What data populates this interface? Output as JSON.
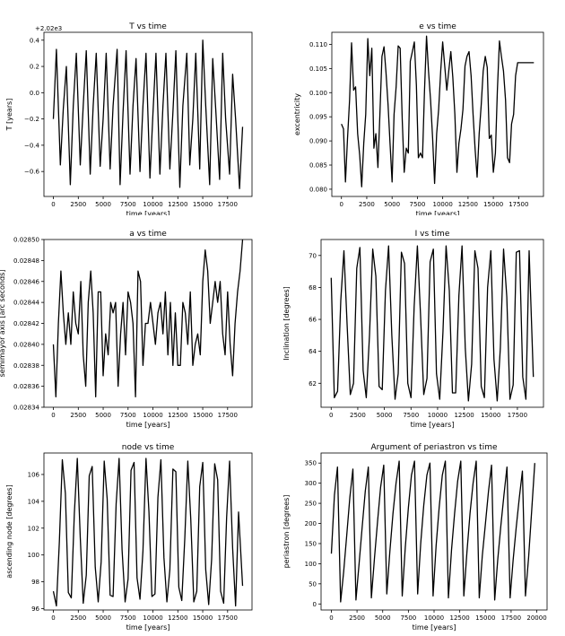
{
  "chart_data": [
    {
      "type": "line",
      "title": "T vs time",
      "xlabel": "time [years]",
      "ylabel": "T [years]",
      "offset_label": "+2.02e3",
      "xlim": [
        -950,
        19950
      ],
      "ylim": [
        -0.79,
        0.46
      ],
      "xticks": [
        0,
        2500,
        5000,
        7500,
        10000,
        12500,
        15000,
        17500
      ],
      "xtick_labels": [
        "0",
        "2500",
        "5000",
        "7500",
        "10000",
        "12500",
        "15000",
        "17500"
      ],
      "yticks": [
        -0.6,
        -0.4,
        -0.2,
        0.0,
        0.2,
        0.4
      ],
      "ytick_labels": [
        "−0.6",
        "−0.4",
        "−0.2",
        "0.0",
        "0.2",
        "0.4"
      ],
      "x": [
        0,
        300,
        700,
        1000,
        1300,
        1700,
        2000,
        2300,
        2700,
        3000,
        3300,
        3700,
        4000,
        4300,
        4700,
        5000,
        5300,
        5700,
        6000,
        6400,
        6700,
        7000,
        7300,
        7700,
        8000,
        8300,
        8700,
        9000,
        9300,
        9700,
        10000,
        10300,
        10700,
        11000,
        11300,
        11700,
        12000,
        12300,
        12700,
        13000,
        13400,
        13700,
        14000,
        14300,
        14700,
        15000,
        15300,
        15700,
        16000,
        16300,
        16700,
        17000,
        17300,
        17700,
        18000,
        18300,
        18700,
        19000
      ],
      "y": [
        -0.2,
        0.33,
        -0.55,
        -0.12,
        0.2,
        -0.7,
        -0.1,
        0.3,
        -0.55,
        -0.1,
        0.32,
        -0.62,
        -0.1,
        0.3,
        -0.56,
        -0.2,
        0.3,
        -0.58,
        -0.1,
        0.33,
        -0.7,
        -0.15,
        0.32,
        -0.62,
        -0.1,
        0.26,
        -0.6,
        -0.1,
        0.3,
        -0.65,
        -0.15,
        0.3,
        -0.62,
        -0.1,
        0.3,
        -0.58,
        -0.15,
        0.32,
        -0.72,
        -0.1,
        0.3,
        -0.55,
        -0.2,
        0.3,
        -0.58,
        0.4,
        -0.1,
        -0.7,
        0.26,
        -0.12,
        -0.66,
        0.3,
        -0.2,
        -0.62,
        0.14,
        -0.2,
        -0.73,
        -0.26
      ]
    },
    {
      "type": "line",
      "title": "e vs time",
      "xlabel": "time [years]",
      "ylabel": "excentricity",
      "xlim": [
        -950,
        19950
      ],
      "ylim": [
        0.0785,
        0.1125
      ],
      "xticks": [
        0,
        2500,
        5000,
        7500,
        10000,
        12500,
        15000,
        17500
      ],
      "xtick_labels": [
        "0",
        "2500",
        "5000",
        "7500",
        "10000",
        "12500",
        "15000",
        "17500"
      ],
      "yticks": [
        0.08,
        0.085,
        0.09,
        0.095,
        0.1,
        0.105,
        0.11
      ],
      "ytick_labels": [
        "0.080",
        "0.085",
        "0.090",
        "0.095",
        "0.100",
        "0.105",
        "0.110"
      ],
      "x": [
        0,
        200,
        400,
        600,
        800,
        1000,
        1200,
        1400,
        1600,
        1800,
        2000,
        2200,
        2400,
        2600,
        2800,
        3000,
        3200,
        3400,
        3600,
        3800,
        4000,
        4200,
        4400,
        4600,
        4800,
        5000,
        5200,
        5400,
        5600,
        5800,
        6000,
        6200,
        6400,
        6600,
        6800,
        7000,
        7200,
        7400,
        7600,
        7800,
        8000,
        8200,
        8400,
        8600,
        8800,
        9000,
        9200,
        9400,
        9600,
        9800,
        10000,
        10200,
        10400,
        10600,
        10800,
        11000,
        11200,
        11400,
        11600,
        11800,
        12000,
        12200,
        12400,
        12600,
        12800,
        13000,
        13200,
        13400,
        13600,
        13800,
        14000,
        14200,
        14400,
        14600,
        14800,
        15000,
        15200,
        15400,
        15600,
        15800,
        16000,
        16200,
        16400,
        16600,
        16800,
        17000,
        17200,
        17400,
        17600,
        17800,
        18000,
        18200,
        18400,
        18600,
        18800,
        19000
      ],
      "y": [
        0.0935,
        0.0925,
        0.0815,
        0.0905,
        0.0985,
        0.1103,
        0.1005,
        0.1012,
        0.0915,
        0.087,
        0.0805,
        0.0895,
        0.0955,
        0.1112,
        0.1035,
        0.1092,
        0.0885,
        0.0915,
        0.0845,
        0.0955,
        0.1075,
        0.1095,
        0.1042,
        0.0975,
        0.0895,
        0.0815,
        0.0955,
        0.1012,
        0.1097,
        0.1092,
        0.0945,
        0.0835,
        0.0885,
        0.0875,
        0.1065,
        0.1085,
        0.1105,
        0.1015,
        0.0865,
        0.0875,
        0.0865,
        0.1002,
        0.1117,
        0.1045,
        0.0985,
        0.0905,
        0.0812,
        0.0915,
        0.0965,
        0.1045,
        0.1105,
        0.1055,
        0.1005,
        0.1045,
        0.1085,
        0.1032,
        0.0955,
        0.0835,
        0.0895,
        0.0925,
        0.0965,
        0.1055,
        0.1075,
        0.1085,
        0.1035,
        0.0955,
        0.0882,
        0.0825,
        0.0915,
        0.0975,
        0.1045,
        0.1075,
        0.1052,
        0.0905,
        0.0912,
        0.0835,
        0.0875,
        0.1005,
        0.1107,
        0.1075,
        0.1045,
        0.0985,
        0.0865,
        0.0855,
        0.0935,
        0.0955,
        0.1035,
        0.1062,
        0.1062,
        0.1062,
        0.1062,
        0.1062,
        0.1062,
        0.1062,
        0.1062,
        0.1062
      ]
    },
    {
      "type": "line",
      "title": "a vs time",
      "xlabel": "time [years]",
      "ylabel": "semimayor axis [arc seconds]",
      "xlim": [
        -950,
        19950
      ],
      "ylim": [
        0.02834,
        0.0285
      ],
      "xticks": [
        0,
        2500,
        5000,
        7500,
        10000,
        12500,
        15000,
        17500
      ],
      "xtick_labels": [
        "0",
        "2500",
        "5000",
        "7500",
        "10000",
        "12500",
        "15000",
        "17500"
      ],
      "yticks": [
        0.02834,
        0.02836,
        0.02838,
        0.0284,
        0.02842,
        0.02844,
        0.02846,
        0.02848,
        0.0285
      ],
      "ytick_labels": [
        "0.02834",
        "0.02836",
        "0.02838",
        "0.02840",
        "0.02842",
        "0.02844",
        "0.02846",
        "0.02848",
        "0.02850"
      ],
      "x": [
        0,
        250,
        500,
        750,
        1000,
        1250,
        1500,
        1750,
        2000,
        2250,
        2500,
        2750,
        3000,
        3250,
        3500,
        3750,
        4000,
        4250,
        4500,
        4750,
        5000,
        5250,
        5500,
        5750,
        6000,
        6250,
        6500,
        6750,
        7000,
        7250,
        7500,
        7750,
        8000,
        8250,
        8500,
        8750,
        9000,
        9250,
        9500,
        9750,
        10000,
        10250,
        10500,
        10750,
        11000,
        11250,
        11500,
        11750,
        12000,
        12250,
        12500,
        12750,
        13000,
        13250,
        13500,
        13750,
        14000,
        14250,
        14500,
        14750,
        15000,
        15250,
        15500,
        15750,
        16000,
        16250,
        16500,
        16750,
        17000,
        17250,
        17500,
        17750,
        18000,
        18250,
        18500,
        18750,
        19000
      ],
      "y": [
        0.0284,
        0.02835,
        0.02842,
        0.02847,
        0.02843,
        0.0284,
        0.02843,
        0.0284,
        0.02845,
        0.02842,
        0.02841,
        0.02846,
        0.02839,
        0.02836,
        0.02844,
        0.02847,
        0.02843,
        0.02835,
        0.02845,
        0.02845,
        0.02837,
        0.02841,
        0.02839,
        0.02844,
        0.02843,
        0.02844,
        0.02836,
        0.02841,
        0.02844,
        0.02839,
        0.02845,
        0.02844,
        0.02842,
        0.02835,
        0.02847,
        0.02846,
        0.02838,
        0.02842,
        0.02842,
        0.02844,
        0.02842,
        0.0284,
        0.02843,
        0.02844,
        0.02841,
        0.02845,
        0.02839,
        0.02844,
        0.02838,
        0.02843,
        0.02838,
        0.02838,
        0.02844,
        0.02843,
        0.0284,
        0.02845,
        0.02838,
        0.0284,
        0.02841,
        0.02839,
        0.02846,
        0.02849,
        0.02847,
        0.02842,
        0.02844,
        0.02846,
        0.02844,
        0.02846,
        0.02841,
        0.02839,
        0.02845,
        0.0284,
        0.02837,
        0.02842,
        0.02845,
        0.02847,
        0.0285
      ]
    },
    {
      "type": "line",
      "title": "I vs time",
      "xlabel": "time [years]",
      "ylabel": "Inclination [degrees]",
      "xlim": [
        -950,
        19950
      ],
      "ylim": [
        60.5,
        71.0
      ],
      "xticks": [
        0,
        2500,
        5000,
        7500,
        10000,
        12500,
        15000,
        17500
      ],
      "xtick_labels": [
        "0",
        "2500",
        "5000",
        "7500",
        "10000",
        "12500",
        "15000",
        "17500"
      ],
      "yticks": [
        62,
        64,
        66,
        68,
        70
      ],
      "ytick_labels": [
        "62",
        "64",
        "66",
        "68",
        "70"
      ],
      "x": [
        0,
        300,
        600,
        900,
        1200,
        1500,
        1800,
        2100,
        2400,
        2700,
        3000,
        3300,
        3600,
        3900,
        4200,
        4500,
        4800,
        5100,
        5400,
        5700,
        6000,
        6300,
        6600,
        6900,
        7200,
        7500,
        7800,
        8100,
        8400,
        8700,
        9000,
        9300,
        9600,
        9900,
        10200,
        10500,
        10800,
        11100,
        11400,
        11700,
        12000,
        12300,
        12600,
        12900,
        13200,
        13500,
        13800,
        14100,
        14400,
        14700,
        15000,
        15300,
        15600,
        15900,
        16200,
        16500,
        16800,
        17100,
        17400,
        17700,
        18000,
        18300,
        18600,
        19000
      ],
      "y": [
        68.6,
        61.1,
        61.5,
        67.2,
        70.3,
        65.6,
        61.3,
        62.0,
        69.2,
        70.5,
        62.8,
        61.1,
        65.0,
        70.4,
        68.7,
        61.8,
        61.6,
        67.8,
        70.6,
        65.0,
        61.0,
        62.6,
        70.2,
        69.5,
        62.0,
        61.1,
        66.8,
        70.6,
        66.3,
        61.3,
        62.3,
        69.6,
        70.4,
        62.6,
        61.0,
        65.2,
        70.6,
        67.8,
        61.4,
        61.4,
        67.5,
        70.6,
        64.2,
        60.9,
        63.2,
        70.3,
        69.2,
        61.8,
        61.1,
        68.0,
        70.3,
        63.5,
        60.9,
        64.2,
        70.4,
        67.4,
        61.0,
        61.9,
        70.2,
        70.3,
        62.4,
        61.0,
        70.3,
        62.4
      ]
    },
    {
      "type": "line",
      "title": "node vs time",
      "xlabel": "time [years]",
      "ylabel": "ascending node [degrees]",
      "xlim": [
        -950,
        19950
      ],
      "ylim": [
        95.9,
        107.6
      ],
      "xticks": [
        0,
        2500,
        5000,
        7500,
        10000,
        12500,
        15000,
        17500
      ],
      "xtick_labels": [
        "0",
        "2500",
        "5000",
        "7500",
        "10000",
        "12500",
        "15000",
        "17500"
      ],
      "yticks": [
        96,
        98,
        100,
        102,
        104,
        106
      ],
      "ytick_labels": [
        "96",
        "98",
        "100",
        "102",
        "104",
        "106"
      ],
      "x": [
        0,
        300,
        600,
        900,
        1200,
        1500,
        1800,
        2100,
        2400,
        2700,
        3000,
        3300,
        3600,
        3900,
        4200,
        4500,
        4800,
        5100,
        5400,
        5700,
        6000,
        6300,
        6600,
        6900,
        7200,
        7500,
        7800,
        8100,
        8400,
        8700,
        9000,
        9300,
        9600,
        9900,
        10200,
        10500,
        10800,
        11100,
        11400,
        11700,
        12000,
        12300,
        12600,
        12900,
        13200,
        13500,
        13800,
        14100,
        14400,
        14700,
        15000,
        15300,
        15600,
        15900,
        16200,
        16500,
        16800,
        17100,
        17400,
        17700,
        18000,
        18300,
        18600,
        19000
      ],
      "y": [
        97.3,
        96.2,
        101.0,
        107.1,
        104.6,
        97.2,
        96.8,
        103.1,
        107.2,
        101.3,
        96.4,
        98.5,
        105.9,
        106.6,
        99.1,
        96.5,
        99.5,
        107.0,
        104.2,
        97.0,
        96.9,
        103.8,
        107.2,
        100.4,
        96.5,
        98.2,
        106.3,
        106.9,
        98.3,
        96.7,
        100.3,
        107.2,
        103.2,
        96.9,
        97.1,
        104.3,
        107.1,
        99.8,
        96.5,
        98.9,
        106.4,
        106.2,
        97.6,
        96.6,
        101.3,
        107.0,
        102.7,
        96.5,
        97.3,
        105.1,
        106.9,
        98.9,
        96.3,
        99.7,
        106.8,
        105.6,
        97.3,
        96.4,
        102.8,
        107.0,
        100.5,
        96.2,
        103.2,
        97.7
      ]
    },
    {
      "type": "line",
      "title": "Argument of periastron vs time",
      "xlabel": "time [years]",
      "ylabel": "periastron [degrees]",
      "xlim": [
        -1000,
        21000
      ],
      "ylim": [
        -15,
        375
      ],
      "xticks": [
        0,
        2500,
        5000,
        7500,
        10000,
        12500,
        15000,
        17500,
        20000
      ],
      "xtick_labels": [
        "0",
        "2500",
        "5000",
        "7500",
        "10000",
        "12500",
        "15000",
        "17500",
        "20000"
      ],
      "yticks": [
        0,
        50,
        100,
        150,
        200,
        250,
        300,
        350
      ],
      "ytick_labels": [
        "0",
        "50",
        "100",
        "150",
        "200",
        "250",
        "300",
        "350"
      ],
      "x": [
        0,
        300,
        600,
        900,
        1200,
        1500,
        1800,
        2100,
        2400,
        2700,
        3000,
        3300,
        3600,
        3900,
        4200,
        4500,
        4800,
        5100,
        5400,
        5700,
        6000,
        6300,
        6600,
        6900,
        7200,
        7500,
        7800,
        8100,
        8400,
        8700,
        9000,
        9300,
        9600,
        9900,
        10200,
        10500,
        10800,
        11100,
        11400,
        11700,
        12000,
        12300,
        12600,
        12900,
        13200,
        13500,
        13800,
        14100,
        14400,
        14700,
        15000,
        15300,
        15600,
        15900,
        16200,
        16500,
        16800,
        17100,
        17400,
        17700,
        18000,
        18300,
        18600,
        18900,
        19200,
        19500,
        19800
      ],
      "y": [
        125,
        270,
        340,
        5,
        80,
        170,
        265,
        335,
        10,
        100,
        190,
        280,
        340,
        15,
        115,
        205,
        290,
        345,
        25,
        130,
        225,
        300,
        355,
        20,
        140,
        240,
        320,
        355,
        25,
        150,
        245,
        320,
        350,
        20,
        145,
        240,
        320,
        355,
        15,
        135,
        225,
        305,
        355,
        20,
        130,
        225,
        300,
        355,
        15,
        120,
        200,
        280,
        345,
        10,
        110,
        195,
        270,
        340,
        15,
        110,
        190,
        265,
        330,
        20,
        115,
        230,
        350
      ]
    }
  ]
}
